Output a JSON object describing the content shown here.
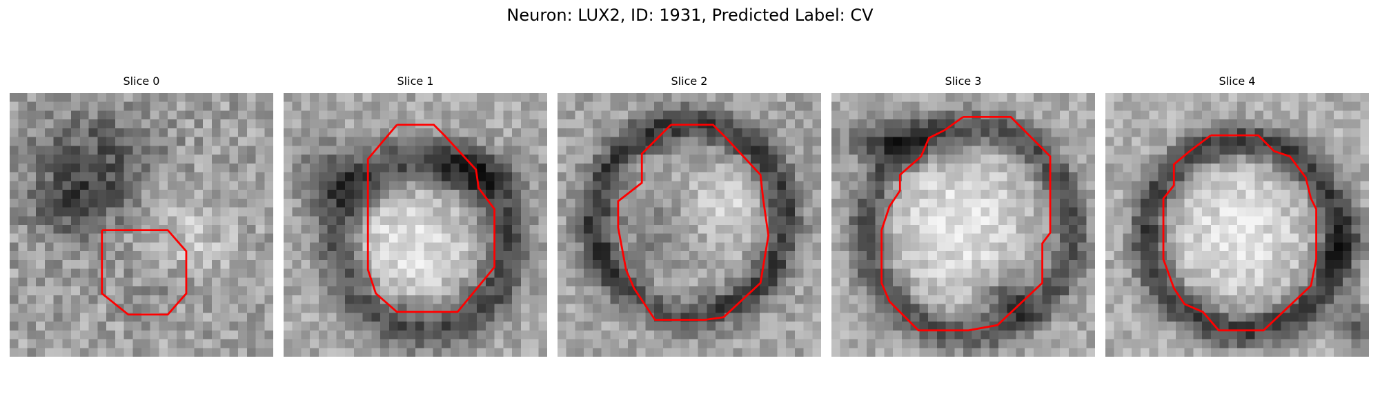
{
  "figure": {
    "title": "Neuron: LUX2, ID: 1931, Predicted Label: CV"
  },
  "colors": {
    "background": "#ffffff",
    "contour": "#ff0000",
    "image_colormap": "grayscale"
  },
  "panels": [
    {
      "title": "Slice 0",
      "image_description": "grayscale microscopy patch with dark diffuse structure at upper left and small red octagon contour centered lower middle",
      "contour_shape": "small octagon"
    },
    {
      "title": "Slice 1",
      "image_description": "grayscale microscopy patch with bright rounded cell body and dark membrane ring on upper left",
      "contour_shape": "large irregular octagon"
    },
    {
      "title": "Slice 2",
      "image_description": "grayscale microscopy patch with dark ring around mixed bright interior",
      "contour_shape": "irregular octagon"
    },
    {
      "title": "Slice 3",
      "image_description": "grayscale microscopy patch with bright cell interior, dark membrane arc on top and right",
      "contour_shape": "large irregular octagon"
    },
    {
      "title": "Slice 4",
      "image_description": "grayscale microscopy patch with bright circular interior surrounded by dark ring",
      "contour_shape": "large rounded octagon"
    }
  ]
}
